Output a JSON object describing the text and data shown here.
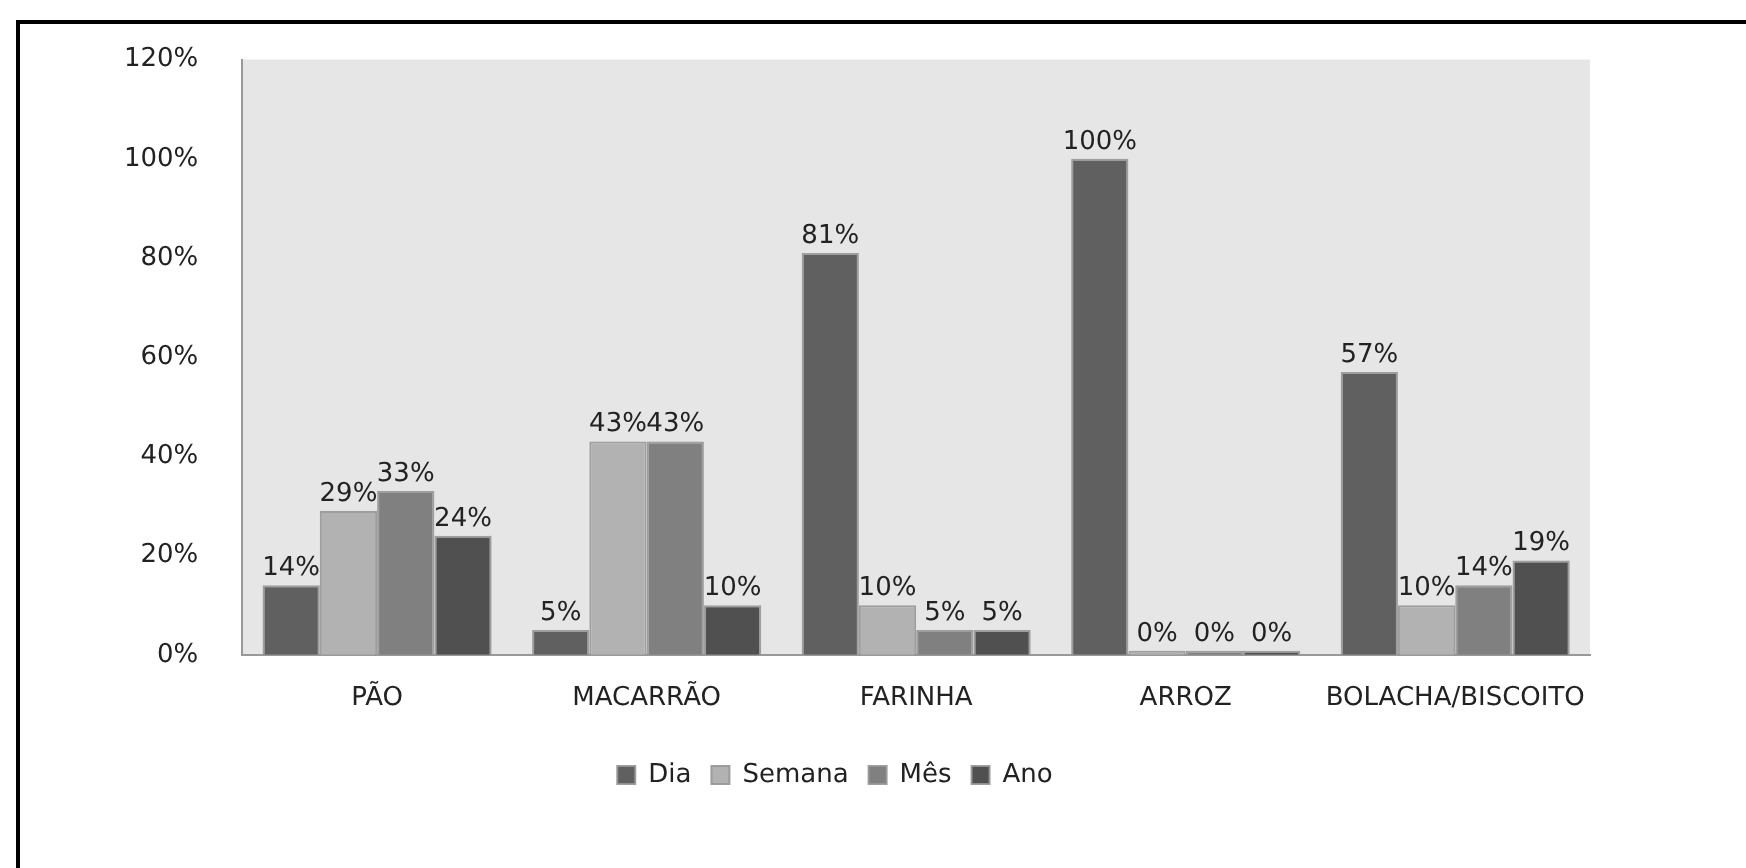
{
  "chart_data": {
    "type": "bar",
    "categories": [
      "PÃO",
      "MACARRÃO",
      "FARINHA",
      "ARROZ",
      "BOLACHA/BISCOITO"
    ],
    "series": [
      {
        "name": "Dia",
        "color": "#606060",
        "values": [
          14,
          5,
          81,
          100,
          57
        ],
        "value_labels": [
          "14%",
          "5%",
          "81%",
          "100%",
          "57%"
        ]
      },
      {
        "name": "Semana",
        "color": "#b2b2b2",
        "values": [
          29,
          43,
          10,
          0,
          10
        ],
        "value_labels": [
          "29%",
          "43%",
          "10%",
          "0%",
          "10%"
        ]
      },
      {
        "name": "Mês",
        "color": "#808080",
        "values": [
          33,
          43,
          5,
          0,
          14
        ],
        "value_labels": [
          "33%",
          "43%",
          "5%",
          "0%",
          "14%"
        ]
      },
      {
        "name": "Ano",
        "color": "#505050",
        "values": [
          24,
          10,
          5,
          0,
          19
        ],
        "value_labels": [
          "24%",
          "10%",
          "5%",
          "0%",
          "19%"
        ]
      }
    ],
    "ylim": [
      0,
      120
    ],
    "yticks": [
      {
        "value": 0,
        "label": "0%"
      },
      {
        "value": 20,
        "label": "20%"
      },
      {
        "value": 40,
        "label": "40%"
      },
      {
        "value": 60,
        "label": "60%"
      },
      {
        "value": 80,
        "label": "80%"
      },
      {
        "value": 100,
        "label": "100%"
      },
      {
        "value": 120,
        "label": "120%"
      }
    ],
    "grid": false,
    "legend": "bottom"
  }
}
